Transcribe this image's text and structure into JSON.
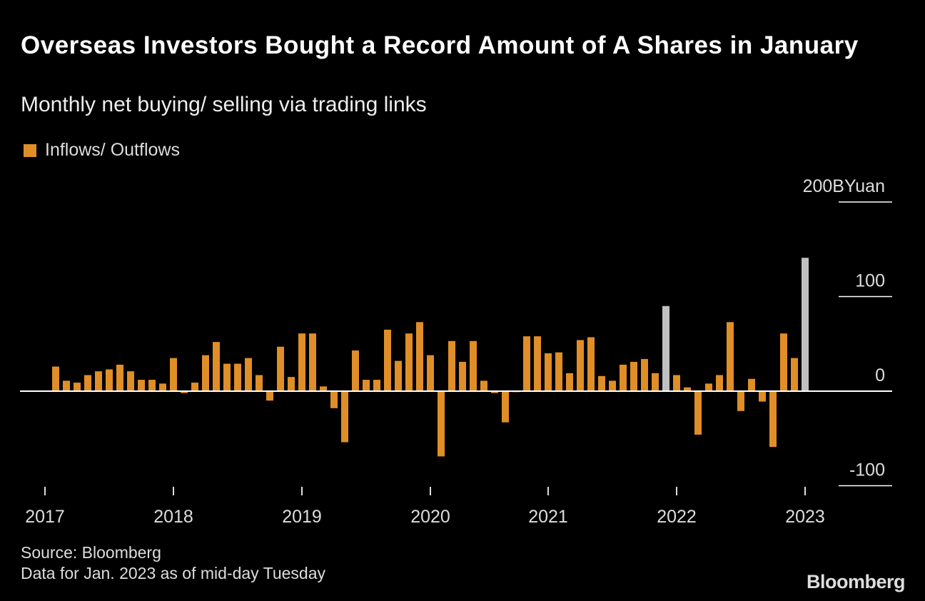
{
  "title": "Overseas Investors Bought a Record Amount of A Shares in January",
  "subtitle": "Monthly net buying/ selling via trading links",
  "source": "Source: Bloomberg",
  "note": "Data for Jan. 2023 as of mid-day Tuesday",
  "logo": "Bloomberg",
  "colors": {
    "bar": "#e08e27",
    "highlight": "#c0c0c0",
    "axis": "#ffffff"
  },
  "chart_data": {
    "type": "bar",
    "title": "Overseas Investors Bought a Record Amount of A Shares in January",
    "subtitle": "Monthly net buying/ selling via trading links",
    "legend": [
      {
        "name": "Inflows/ Outflows",
        "color": "#e08e27"
      }
    ],
    "legend_placement": "top-left",
    "ylabel": "BYuan",
    "ylim": [
      -100,
      200
    ],
    "yticks": [
      {
        "value": 200,
        "label": "200BYuan"
      },
      {
        "value": 100,
        "label": "100"
      },
      {
        "value": 0,
        "label": "0"
      },
      {
        "value": -100,
        "label": "-100"
      }
    ],
    "xticks": [
      {
        "index": -1,
        "label": "2017"
      },
      {
        "index": 11,
        "label": "2018"
      },
      {
        "index": 23,
        "label": "2019"
      },
      {
        "index": 35,
        "label": "2020"
      },
      {
        "index": 46,
        "label": "2021"
      },
      {
        "index": 58,
        "label": "2022"
      },
      {
        "index": 70,
        "label": "2023"
      }
    ],
    "values": [
      26,
      11,
      9,
      17,
      21,
      23,
      28,
      21,
      12,
      12,
      8,
      35,
      -2,
      9,
      38,
      52,
      29,
      29,
      35,
      17,
      -10,
      47,
      15,
      61,
      61,
      5,
      -18,
      -54,
      43,
      12,
      12,
      65,
      32,
      61,
      73,
      38,
      -69,
      53,
      31,
      53,
      11,
      -2,
      -33,
      -1,
      58,
      58,
      40,
      41,
      19,
      54,
      57,
      16,
      11,
      28,
      31,
      34,
      19,
      90,
      17,
      4,
      -46,
      8,
      17,
      73,
      -21,
      13,
      -11,
      -59,
      61,
      35,
      141
    ],
    "highlighted_indices": [
      57,
      70
    ]
  }
}
